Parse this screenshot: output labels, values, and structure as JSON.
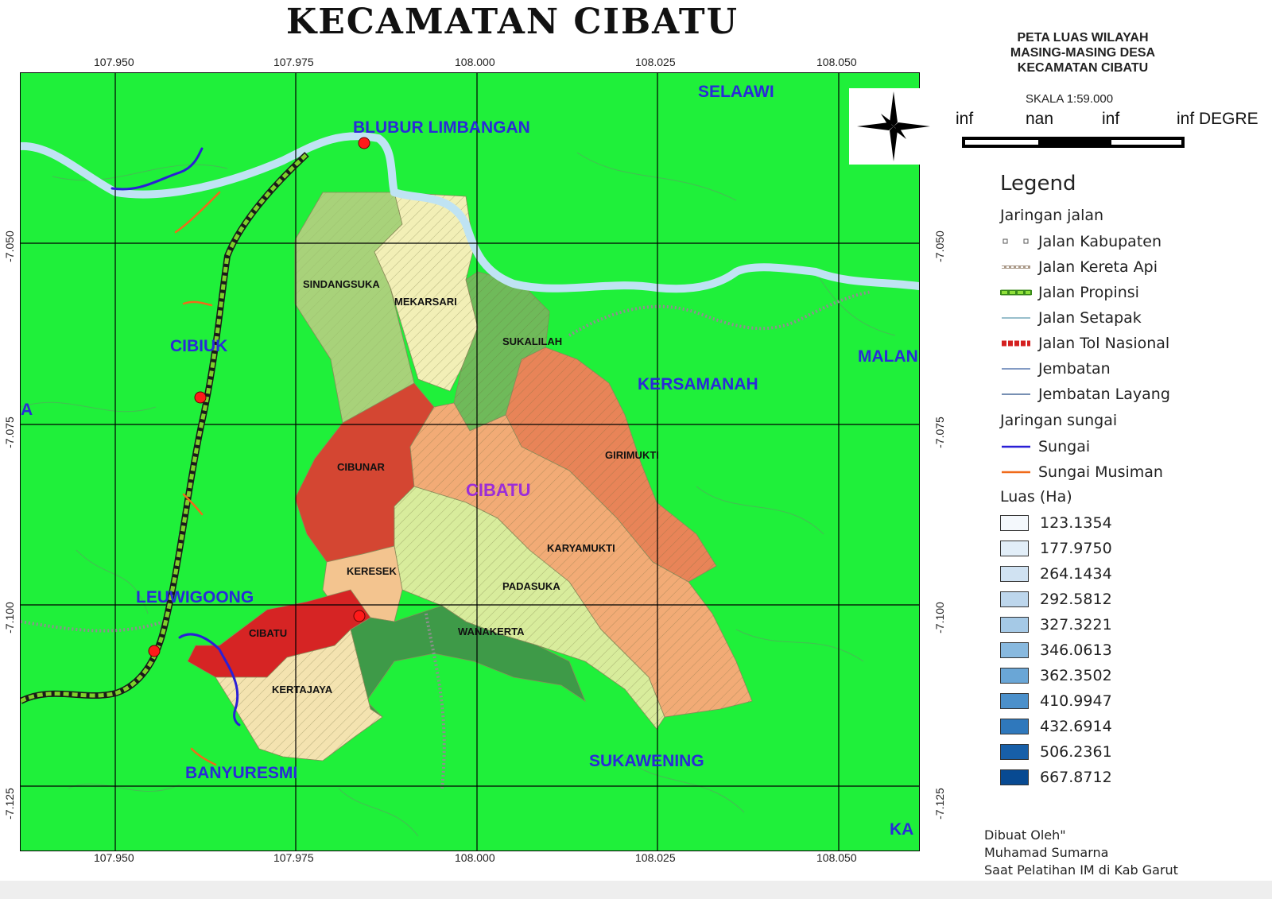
{
  "title": "KECAMATAN CIBATU",
  "coordinates": {
    "longitude": [
      "107.950",
      "107.975",
      "108.000",
      "108.025",
      "108.050"
    ],
    "latitude": [
      "-7.050",
      "-7.075",
      "-7.100",
      "-7.125"
    ]
  },
  "map_labels": {
    "neighbors": {
      "blubur_limbangan": "BLUBUR LIMBANGAN",
      "selaawi": "SELAAWI",
      "cibiuk": "CIBIUK",
      "kersamanah": "KERSAMANAH",
      "malan": "MALAN",
      "leuwigoong": "LEUWIGOONG",
      "banyuresmi": "BANYURESMI",
      "sukawening": "SUKAWENING",
      "ka": "KA",
      "a": "A"
    },
    "district": "CIBATU",
    "villages": {
      "sindangsuka": "SINDANGSUKA",
      "mekarsari": "MEKARSARI",
      "sukalilah": "SUKALILAH",
      "cibunar": "CIBUNAR",
      "girimukti": "GIRIMUKTI",
      "karyamukti": "KARYAMUKTI",
      "keresek": "KERESEK",
      "padasuka": "PADASUKA",
      "cibatu": "CIBATU",
      "wanakerta": "WANAKERTA",
      "kertajaya": "KERTAJAYA"
    }
  },
  "panel": {
    "title_lines": [
      "PETA LUAS WILAYAH",
      "MASING-MASING DESA",
      "KECAMATAN CIBATU"
    ],
    "scale_text": "SKALA 1:59.000",
    "scale_labels": [
      "inf",
      "nan",
      "inf",
      "inf DEGRE"
    ]
  },
  "legend": {
    "title": "Legend",
    "road_group": "Jaringan jalan",
    "roads": [
      {
        "label": "Jalan Kabupaten",
        "icon": "dot-pair-icon"
      },
      {
        "label": "Jalan Kereta Api",
        "icon": "railway-icon"
      },
      {
        "label": "Jalan Propinsi",
        "icon": "provincial-road-icon"
      },
      {
        "label": "Jalan Setapak",
        "icon": "footpath-icon"
      },
      {
        "label": "Jalan Tol Nasional",
        "icon": "toll-road-icon"
      },
      {
        "label": "Jembatan",
        "icon": "bridge-icon"
      },
      {
        "label": "Jembatan Layang",
        "icon": "flyover-icon"
      }
    ],
    "river_group": "Jaringan sungai",
    "rivers": [
      {
        "label": "Sungai",
        "color": "#2a1fd6"
      },
      {
        "label": "Sungai Musiman",
        "color": "#f06a1a"
      }
    ],
    "luas_group": "Luas (Ha)",
    "luas": [
      {
        "value": "123.1354",
        "color": "#f4f8fc"
      },
      {
        "value": "177.9750",
        "color": "#e2eef8"
      },
      {
        "value": "264.1434",
        "color": "#d0e2f2"
      },
      {
        "value": "292.5812",
        "color": "#bdd6ec"
      },
      {
        "value": "327.3221",
        "color": "#a5c9e6"
      },
      {
        "value": "346.0613",
        "color": "#88b9df"
      },
      {
        "value": "362.3502",
        "color": "#6aa6d6"
      },
      {
        "value": "410.9947",
        "color": "#4b90cb"
      },
      {
        "value": "432.6914",
        "color": "#2f78bc"
      },
      {
        "value": "506.2361",
        "color": "#175fa8"
      },
      {
        "value": "667.8712",
        "color": "#084a92"
      }
    ]
  },
  "credits": [
    "Dibuat Oleh\"",
    "Muhamad Sumarna",
    "Saat Pelatihan IM di Kab Garut"
  ],
  "colors": {
    "background": "#1ff03a",
    "wide_river": "#bfe3f3",
    "village_sindangsuka": "#a8d27a",
    "village_mekarsari": "#f2efb6",
    "village_sukalilah": "#6fba5a",
    "village_cibunar": "#d44632",
    "village_girimukti": "#e88458",
    "village_karyamukti": "#f2ab76",
    "village_keresek": "#f3c48f",
    "village_padasuka": "#d8ec9c",
    "village_cibatu": "#d62424",
    "village_wanakerta": "#3e9a48",
    "village_kertajaya": "#f4e3b0",
    "neighbor_label": "#2a2ad8",
    "district_label": "#9b2dd8"
  }
}
